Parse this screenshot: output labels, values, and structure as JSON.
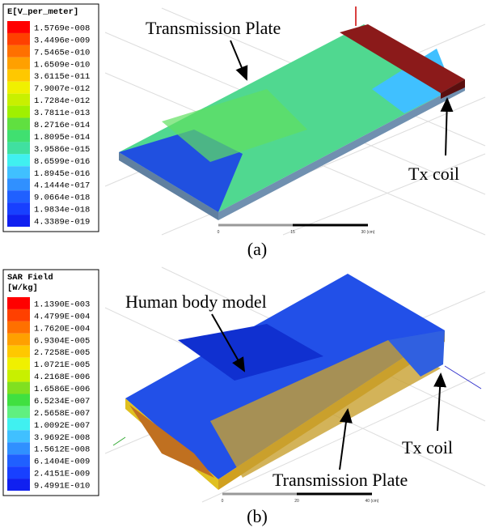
{
  "panels": [
    {
      "legend": {
        "title": [
          "E[V_per_meter]"
        ],
        "entries": [
          {
            "label": "1.5769e-008",
            "color": "#ff0000"
          },
          {
            "label": "3.4496e-009",
            "color": "#ff4000"
          },
          {
            "label": "7.5465e-010",
            "color": "#ff7000"
          },
          {
            "label": "1.6509e-010",
            "color": "#ffa000"
          },
          {
            "label": "3.6115e-011",
            "color": "#ffc800"
          },
          {
            "label": "7.9007e-012",
            "color": "#f0f000"
          },
          {
            "label": "1.7284e-012",
            "color": "#c8f000"
          },
          {
            "label": "3.7811e-013",
            "color": "#a0f000"
          },
          {
            "label": "8.2716e-014",
            "color": "#60e040"
          },
          {
            "label": "1.8095e-014",
            "color": "#40e070"
          },
          {
            "label": "3.9586e-015",
            "color": "#40e0a0"
          },
          {
            "label": "8.6599e-016",
            "color": "#40f0f0"
          },
          {
            "label": "1.8945e-016",
            "color": "#40c0ff"
          },
          {
            "label": "4.1444e-017",
            "color": "#3090ff"
          },
          {
            "label": "9.0664e-018",
            "color": "#2060ff"
          },
          {
            "label": "1.9834e-018",
            "color": "#1840ff"
          },
          {
            "label": "4.3389e-019",
            "color": "#1020f0"
          }
        ]
      },
      "labels": {
        "plate": "Transmission Plate",
        "coil": "Tx coil"
      },
      "scale": [
        "0",
        "15",
        "30 (cm)"
      ],
      "caption": "(a)"
    },
    {
      "legend": {
        "title": [
          "SAR Field",
          "[W/kg]"
        ],
        "entries": [
          {
            "label": "1.1390E-003",
            "color": "#ff0000"
          },
          {
            "label": "4.4799E-004",
            "color": "#ff4000"
          },
          {
            "label": "1.7620E-004",
            "color": "#ff7000"
          },
          {
            "label": "6.9304E-005",
            "color": "#ffa000"
          },
          {
            "label": "2.7258E-005",
            "color": "#ffc800"
          },
          {
            "label": "1.0721E-005",
            "color": "#f0f000"
          },
          {
            "label": "4.2168E-006",
            "color": "#c8f000"
          },
          {
            "label": "1.6586E-006",
            "color": "#80e020"
          },
          {
            "label": "6.5234E-007",
            "color": "#40e040"
          },
          {
            "label": "2.5658E-007",
            "color": "#60f080"
          },
          {
            "label": "1.0092E-007",
            "color": "#40f0f0"
          },
          {
            "label": "3.9692E-008",
            "color": "#40c0ff"
          },
          {
            "label": "1.5612E-008",
            "color": "#3090ff"
          },
          {
            "label": "6.1404E-009",
            "color": "#2060ff"
          },
          {
            "label": "2.4151E-009",
            "color": "#1840ff"
          },
          {
            "label": "9.4991E-010",
            "color": "#1020f0"
          }
        ]
      },
      "labels": {
        "body": "Human body model",
        "coil": "Tx coil",
        "plate": "Transmission Plate"
      },
      "scale": [
        "0",
        "20",
        "40 (cm)"
      ],
      "caption": "(b)"
    }
  ]
}
